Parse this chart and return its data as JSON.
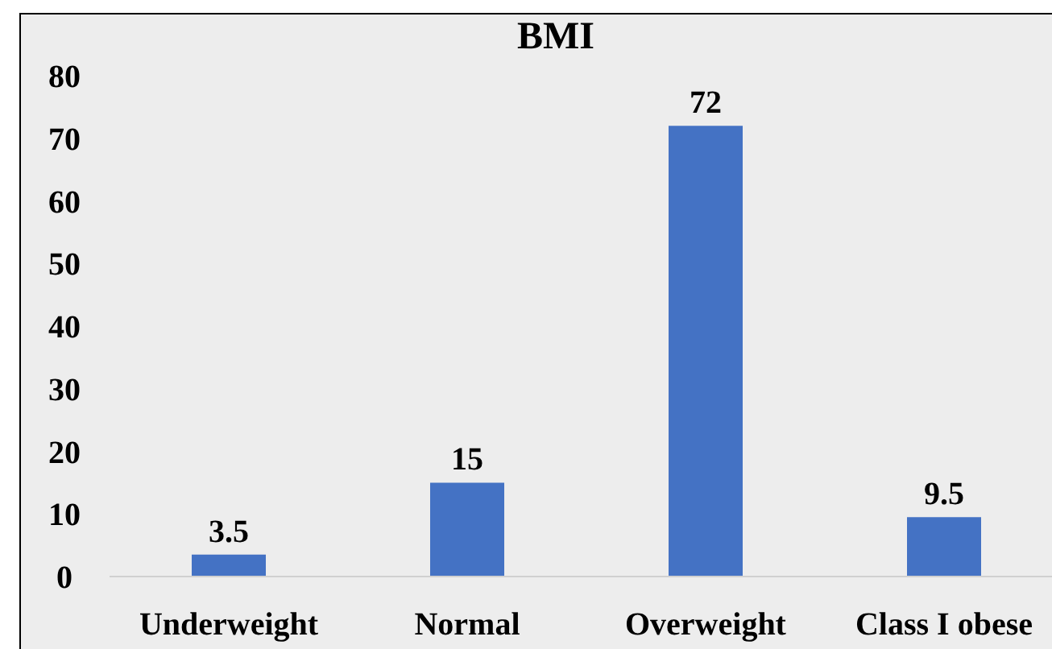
{
  "chart_data": {
    "type": "bar",
    "title": "BMI",
    "categories": [
      "Underweight",
      "Normal",
      "Overweight",
      "Class I obese"
    ],
    "values": [
      3.5,
      15,
      72,
      9.5
    ],
    "color": "#4472c4",
    "ylim": [
      0,
      80
    ],
    "yticks": [
      0,
      10,
      20,
      30,
      40,
      50,
      60,
      70,
      80
    ],
    "grid": false,
    "data_labels": true
  }
}
